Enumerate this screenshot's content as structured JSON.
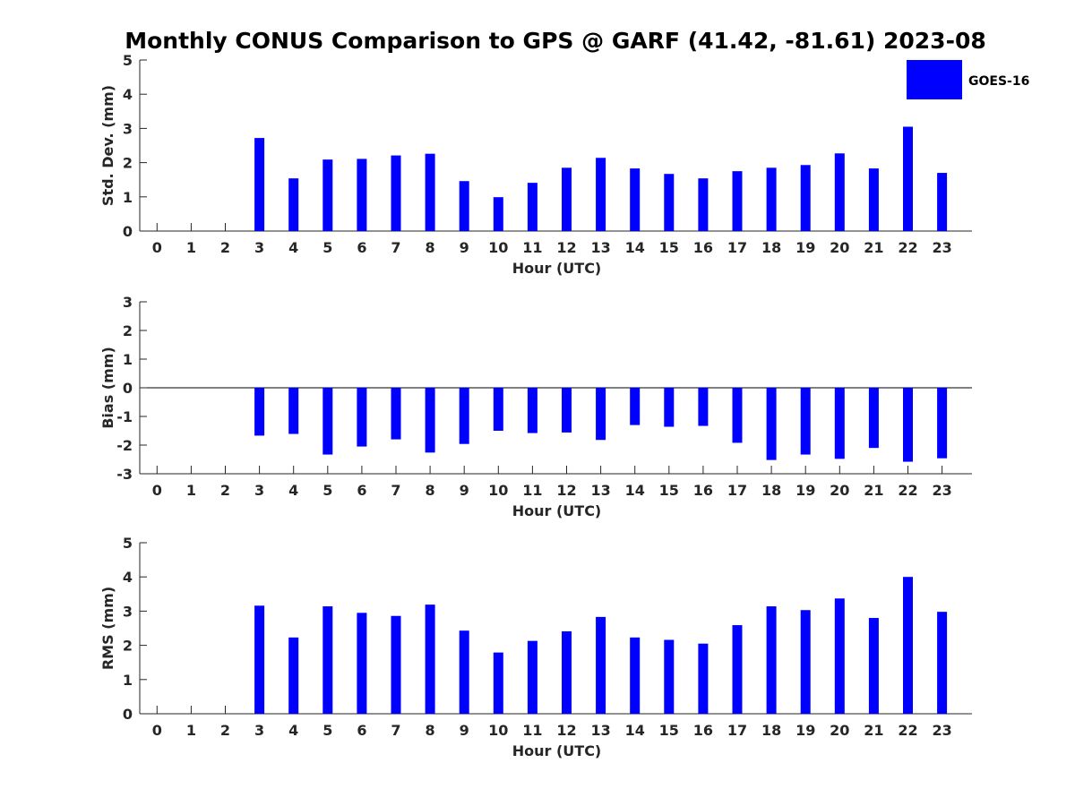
{
  "title": "Monthly CONUS Comparison to GPS @ GARF (41.42, -81.61) 2023-08",
  "legend": {
    "label": "GOES-16",
    "color": "#0000ff",
    "position": "top-right"
  },
  "chart_data": [
    {
      "type": "bar",
      "xlabel": "Hour (UTC)",
      "ylabel": "Std. Dev. (mm)",
      "ylim": [
        0,
        5
      ],
      "yticks": [
        "0",
        "1",
        "2",
        "3",
        "4",
        "5"
      ],
      "categories": [
        "0",
        "1",
        "2",
        "3",
        "4",
        "5",
        "6",
        "7",
        "8",
        "9",
        "10",
        "11",
        "12",
        "13",
        "14",
        "15",
        "16",
        "17",
        "18",
        "19",
        "20",
        "21",
        "22",
        "23"
      ],
      "series": [
        {
          "name": "GOES-16",
          "values": [
            null,
            null,
            null,
            2.72,
            1.54,
            2.09,
            2.11,
            2.21,
            2.26,
            1.46,
            0.99,
            1.41,
            1.85,
            2.14,
            1.83,
            1.67,
            1.54,
            1.75,
            1.85,
            1.93,
            2.27,
            1.83,
            3.05,
            1.7
          ]
        }
      ]
    },
    {
      "type": "bar",
      "xlabel": "Hour (UTC)",
      "ylabel": "Bias (mm)",
      "ylim": [
        -3,
        3
      ],
      "yticks": [
        "-3",
        "-2",
        "-1",
        "0",
        "1",
        "2",
        "3"
      ],
      "categories": [
        "0",
        "1",
        "2",
        "3",
        "4",
        "5",
        "6",
        "7",
        "8",
        "9",
        "10",
        "11",
        "12",
        "13",
        "14",
        "15",
        "16",
        "17",
        "18",
        "19",
        "20",
        "21",
        "22",
        "23"
      ],
      "series": [
        {
          "name": "GOES-16",
          "values": [
            null,
            null,
            null,
            -1.67,
            -1.61,
            -2.33,
            -2.05,
            -1.8,
            -2.26,
            -1.96,
            -1.5,
            -1.58,
            -1.56,
            -1.82,
            -1.3,
            -1.36,
            -1.33,
            -1.92,
            -2.52,
            -2.33,
            -2.48,
            -2.1,
            -2.58,
            -2.46
          ]
        }
      ]
    },
    {
      "type": "bar",
      "xlabel": "Hour (UTC)",
      "ylabel": "RMS (mm)",
      "ylim": [
        0,
        5
      ],
      "yticks": [
        "0",
        "1",
        "2",
        "3",
        "4",
        "5"
      ],
      "categories": [
        "0",
        "1",
        "2",
        "3",
        "4",
        "5",
        "6",
        "7",
        "8",
        "9",
        "10",
        "11",
        "12",
        "13",
        "14",
        "15",
        "16",
        "17",
        "18",
        "19",
        "20",
        "21",
        "22",
        "23"
      ],
      "series": [
        {
          "name": "GOES-16",
          "values": [
            null,
            null,
            null,
            3.16,
            2.23,
            3.14,
            2.95,
            2.86,
            3.19,
            2.43,
            1.79,
            2.13,
            2.41,
            2.83,
            2.23,
            2.16,
            2.05,
            2.59,
            3.14,
            3.03,
            3.37,
            2.8,
            4.0,
            2.98
          ]
        }
      ]
    }
  ]
}
